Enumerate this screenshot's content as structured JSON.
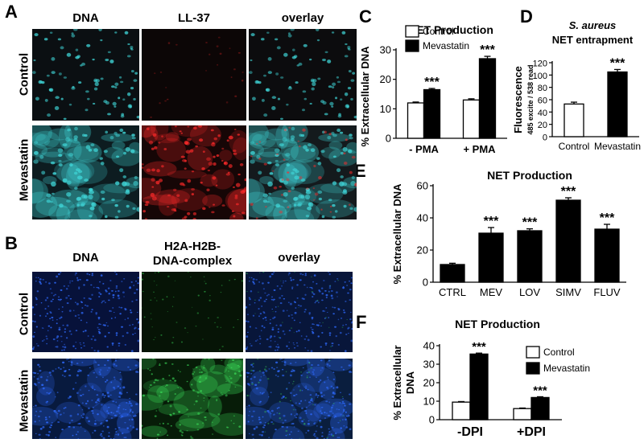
{
  "panel_letters": {
    "A": "A",
    "B": "B",
    "C": "C",
    "D": "D",
    "E": "E",
    "F": "F"
  },
  "panel_A": {
    "columns": [
      "DNA",
      "LL-37",
      "overlay"
    ],
    "rows": [
      "Control",
      "Mevastatin"
    ]
  },
  "panel_B": {
    "columns": [
      "DNA",
      "H2A-H2B-DNA-complex",
      "overlay"
    ],
    "column_2_lines": [
      "H2A-H2B-",
      "DNA-complex"
    ],
    "rows": [
      "Control",
      "Mevastatin"
    ]
  },
  "colors": {
    "dna_stain": "#3fd4d6",
    "ll37_stain": "#ff2a2a",
    "dapi_stain": "#2f6bff",
    "histone_stain": "#3ce05a",
    "control_bar": "#ffffff",
    "treated_bar": "#000000"
  },
  "chart_data": [
    {
      "panel": "C",
      "type": "bar",
      "title": "NET Production",
      "ylabel": "% Extracellular DNA",
      "ylim": [
        0,
        30
      ],
      "yticks": [
        0,
        10,
        20,
        30
      ],
      "categories": [
        "- PMA",
        "+ PMA"
      ],
      "series": [
        {
          "name": "Control",
          "values": [
            12,
            13
          ],
          "errors": [
            0.3,
            0.4
          ]
        },
        {
          "name": "Mevastatin",
          "values": [
            16.5,
            27
          ],
          "errors": [
            0.4,
            0.8
          ]
        }
      ],
      "annotations": [
        {
          "series": 1,
          "index": 0,
          "text": "***"
        },
        {
          "series": 1,
          "index": 1,
          "text": "***"
        }
      ],
      "legend": "top-left"
    },
    {
      "panel": "D",
      "type": "bar",
      "title_italic": "S. aureus",
      "title": "NET entrapment",
      "ylabel": "Fluorescence",
      "ylabel_sub": "485 excite / 538 read",
      "ylim": [
        0,
        120
      ],
      "yticks": [
        0,
        20,
        40,
        60,
        80,
        100,
        120
      ],
      "categories": [
        "Control",
        "Mevastatin"
      ],
      "values": [
        53,
        105
      ],
      "errors": [
        3,
        4
      ],
      "fills": [
        "#ffffff",
        "#000000"
      ],
      "annotations": [
        {
          "index": 1,
          "text": "***"
        }
      ]
    },
    {
      "panel": "E",
      "type": "bar",
      "title": "NET Production",
      "ylabel": "% Extracellular DNA",
      "ylim": [
        0,
        60
      ],
      "yticks": [
        0,
        20,
        40,
        60
      ],
      "categories": [
        "CTRL",
        "MEV",
        "LOV",
        "SIMV",
        "FLUV"
      ],
      "values": [
        11,
        30.5,
        32,
        51,
        33
      ],
      "errors": [
        0.8,
        3.5,
        1.2,
        1.5,
        3
      ],
      "annotations": [
        {
          "index": 1,
          "text": "***"
        },
        {
          "index": 2,
          "text": "***"
        },
        {
          "index": 3,
          "text": "***"
        },
        {
          "index": 4,
          "text": "***"
        }
      ]
    },
    {
      "panel": "F",
      "type": "bar",
      "title": "NET Production",
      "ylabel": "% Extracellular DNA",
      "ylabel_lines": [
        "% Extracellular",
        "DNA"
      ],
      "ylim": [
        0,
        40
      ],
      "yticks": [
        0,
        10,
        20,
        30,
        40
      ],
      "categories": [
        "-DPI",
        "+DPI"
      ],
      "series": [
        {
          "name": "Control",
          "values": [
            9.5,
            6
          ],
          "errors": [
            0.3,
            0.3
          ]
        },
        {
          "name": "Mevastatin",
          "values": [
            35.5,
            12
          ],
          "errors": [
            0.5,
            0.4
          ]
        }
      ],
      "annotations": [
        {
          "series": 1,
          "index": 0,
          "text": "***"
        },
        {
          "series": 1,
          "index": 1,
          "text": "***"
        }
      ],
      "legend": "top-right"
    }
  ]
}
